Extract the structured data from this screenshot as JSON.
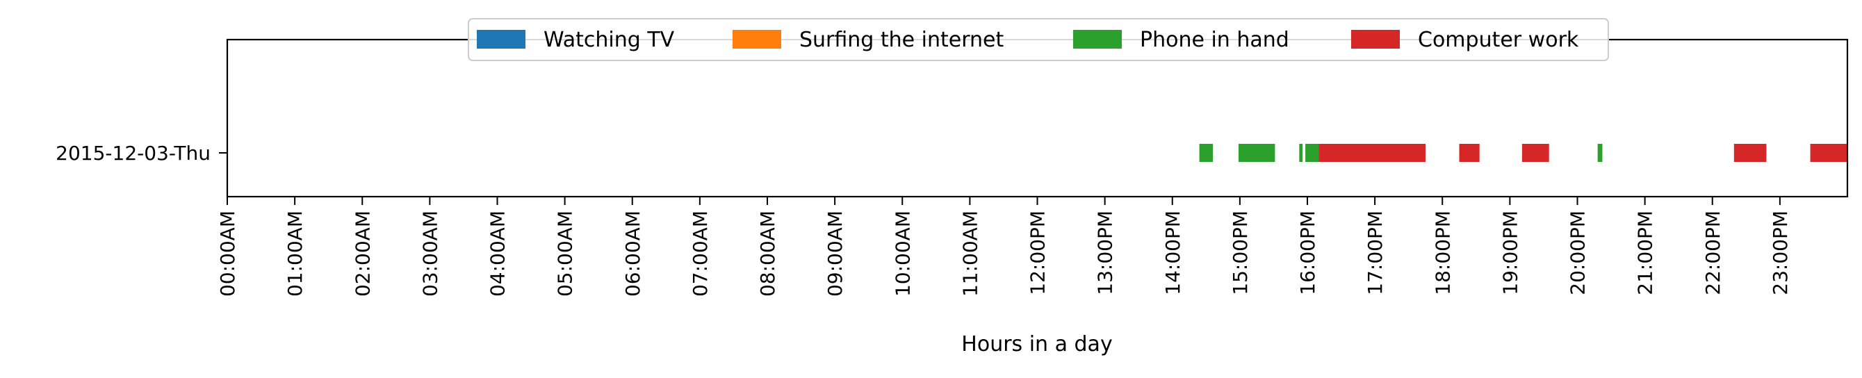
{
  "chart_data": {
    "type": "timeline",
    "xlabel": "Hours in a day",
    "ylabel": "",
    "xlim": [
      0,
      24
    ],
    "grid": false,
    "legend_position": "top-center",
    "rows": [
      "2015-12-03-Thu"
    ],
    "tick_labels": [
      "00:00AM",
      "01:00AM",
      "02:00AM",
      "03:00AM",
      "04:00AM",
      "05:00AM",
      "06:00AM",
      "07:00AM",
      "08:00AM",
      "09:00AM",
      "10:00AM",
      "11:00AM",
      "12:00PM",
      "13:00PM",
      "14:00PM",
      "15:00PM",
      "16:00PM",
      "17:00PM",
      "18:00PM",
      "19:00PM",
      "20:00PM",
      "21:00PM",
      "22:00PM",
      "23:00PM"
    ],
    "series": [
      {
        "name": "Watching TV",
        "color": "#1f77b4",
        "intervals": []
      },
      {
        "name": "Surfing the internet",
        "color": "#ff7f0e",
        "intervals": []
      },
      {
        "name": "Phone in hand",
        "color": "#2ca02c",
        "intervals": [
          [
            14.4,
            14.6
          ],
          [
            14.98,
            15.52
          ],
          [
            15.88,
            15.93
          ],
          [
            15.97,
            16.23
          ],
          [
            16.37,
            16.4
          ],
          [
            20.3,
            20.37
          ]
        ]
      },
      {
        "name": "Computer work",
        "color": "#d62728",
        "intervals": [
          [
            16.17,
            17.75
          ],
          [
            18.25,
            18.55
          ],
          [
            19.18,
            19.58
          ],
          [
            22.32,
            22.8
          ],
          [
            23.45,
            24.0
          ]
        ]
      }
    ]
  }
}
